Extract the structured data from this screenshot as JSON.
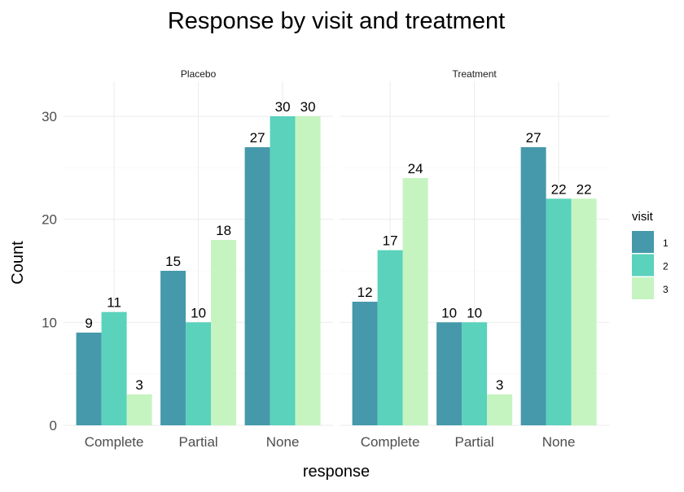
{
  "chart_data": {
    "type": "bar",
    "title": "Response by visit and treatment",
    "xlabel": "response",
    "ylabel": "Count",
    "ylim": [
      0,
      30
    ],
    "yticks": [
      0,
      10,
      20,
      30
    ],
    "grid": true,
    "legend": {
      "title": "visit",
      "placement": "right"
    },
    "categories": [
      "Complete",
      "Partial",
      "None"
    ],
    "facets": [
      {
        "name": "Placebo",
        "series": [
          {
            "name": "1",
            "values": [
              9,
              15,
              27
            ]
          },
          {
            "name": "2",
            "values": [
              11,
              10,
              30
            ]
          },
          {
            "name": "3",
            "values": [
              3,
              18,
              30
            ]
          }
        ]
      },
      {
        "name": "Treatment",
        "series": [
          {
            "name": "1",
            "values": [
              12,
              10,
              27
            ]
          },
          {
            "name": "2",
            "values": [
              17,
              10,
              22
            ]
          },
          {
            "name": "3",
            "values": [
              24,
              3,
              22
            ]
          }
        ]
      }
    ],
    "colors": {
      "1": "#4599ab",
      "2": "#5ad2bc",
      "3": "#c5f4c0"
    }
  }
}
